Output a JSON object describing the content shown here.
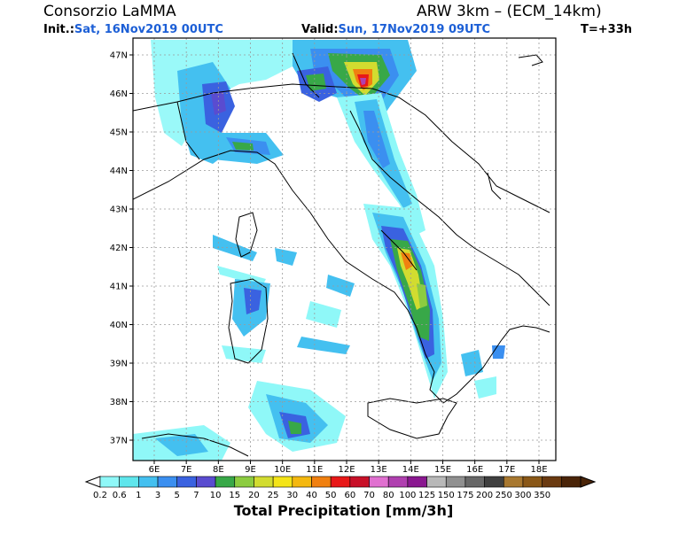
{
  "header": {
    "org": "Consorzio LaMMA",
    "model": "ARW 3km – (ECM_14km)",
    "init_label": "Init.:",
    "init_value": "Sat, 16Nov2019 00UTC",
    "valid_label": "Valid:",
    "valid_value": "Sun, 17Nov2019 09UTC",
    "lead": "T=+33h"
  },
  "map": {
    "lat_labels": [
      "47N",
      "46N",
      "45N",
      "44N",
      "43N",
      "42N",
      "41N",
      "40N",
      "39N",
      "38N",
      "37N"
    ],
    "lon_labels": [
      "6E",
      "7E",
      "8E",
      "9E",
      "10E",
      "11E",
      "12E",
      "13E",
      "14E",
      "15E",
      "16E",
      "17E",
      "18E"
    ]
  },
  "colorbar": {
    "title": "Total Precipitation [mm/3h]",
    "levels": [
      "0.2",
      "0.6",
      "1",
      "3",
      "5",
      "7",
      "10",
      "15",
      "20",
      "25",
      "30",
      "40",
      "50",
      "60",
      "70",
      "80",
      "100",
      "125",
      "150",
      "175",
      "200",
      "250",
      "300",
      "350"
    ],
    "colors": [
      "#8ff8f8",
      "#5fe6ec",
      "#44c0f0",
      "#3b8ff0",
      "#3a62e0",
      "#5a4cd0",
      "#38a848",
      "#8ccc40",
      "#d2dc30",
      "#f4e418",
      "#f4b810",
      "#f08010",
      "#e81818",
      "#c81028",
      "#e070d0",
      "#b040b0",
      "#8a1890",
      "#b8b8b8",
      "#909090",
      "#686868",
      "#404040",
      "#a87830",
      "#8a5818",
      "#6a3a10",
      "#4a2408"
    ],
    "under_color": "#ffffff",
    "over_color": "#4a2408"
  }
}
